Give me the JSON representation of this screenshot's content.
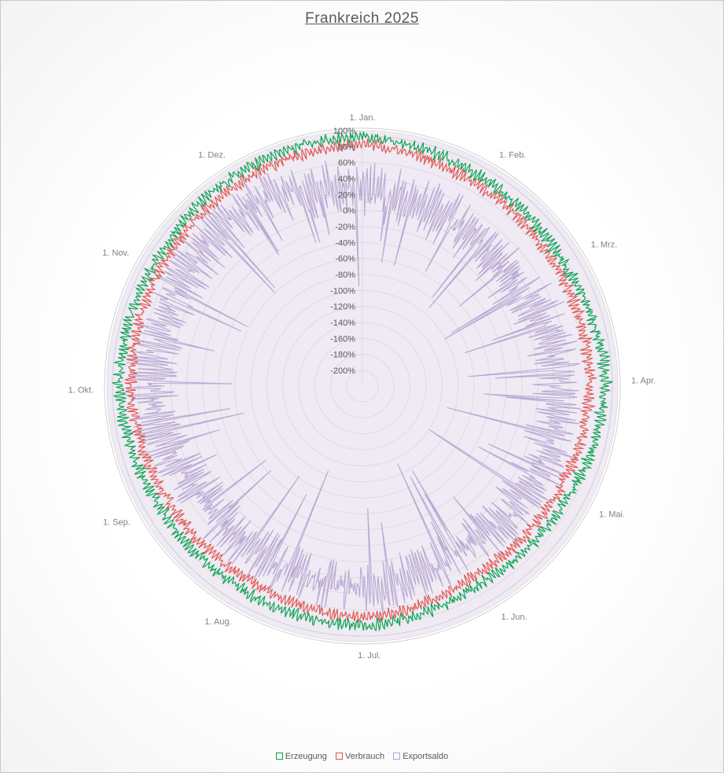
{
  "chart_data": {
    "type": "radar",
    "title": "Frankreich 2025",
    "month_labels": [
      "1. Jan.",
      "1. Feb.",
      "1. Mrz.",
      "1. Apr.",
      "1. Mai.",
      "1. Jun.",
      "1. Jul.",
      "1. Aug.",
      "1. Sep.",
      "1. Okt.",
      "1. Nov.",
      "1. Dez."
    ],
    "month_start_days": [
      0,
      31,
      59,
      90,
      120,
      151,
      181,
      212,
      243,
      273,
      304,
      334
    ],
    "days_in_year": 365,
    "radial_ticks": [
      "100%",
      "80%",
      "60%",
      "40%",
      "20%",
      "0%",
      "-20%",
      "-40%",
      "-60%",
      "-80%",
      "-100%",
      "-120%",
      "-140%",
      "-160%",
      "-180%",
      "-200%"
    ],
    "rlim": [
      -200,
      100
    ],
    "grid": true,
    "legend_position": "bottom",
    "series": [
      {
        "name": "Erzeugung",
        "color": "#00a04a",
        "typical_values_by_month": [
          92,
          80,
          75,
          85,
          72,
          68,
          80,
          76,
          75,
          85,
          82,
          88
        ]
      },
      {
        "name": "Verbrauch",
        "color": "#e0524b",
        "typical_values_by_month": [
          82,
          70,
          65,
          65,
          58,
          55,
          70,
          62,
          62,
          70,
          72,
          78
        ]
      },
      {
        "name": "Exportsaldo",
        "color": "#b4a3cf",
        "typical_values_by_month": [
          25,
          15,
          10,
          30,
          25,
          20,
          35,
          25,
          25,
          45,
          40,
          45
        ]
      }
    ]
  }
}
